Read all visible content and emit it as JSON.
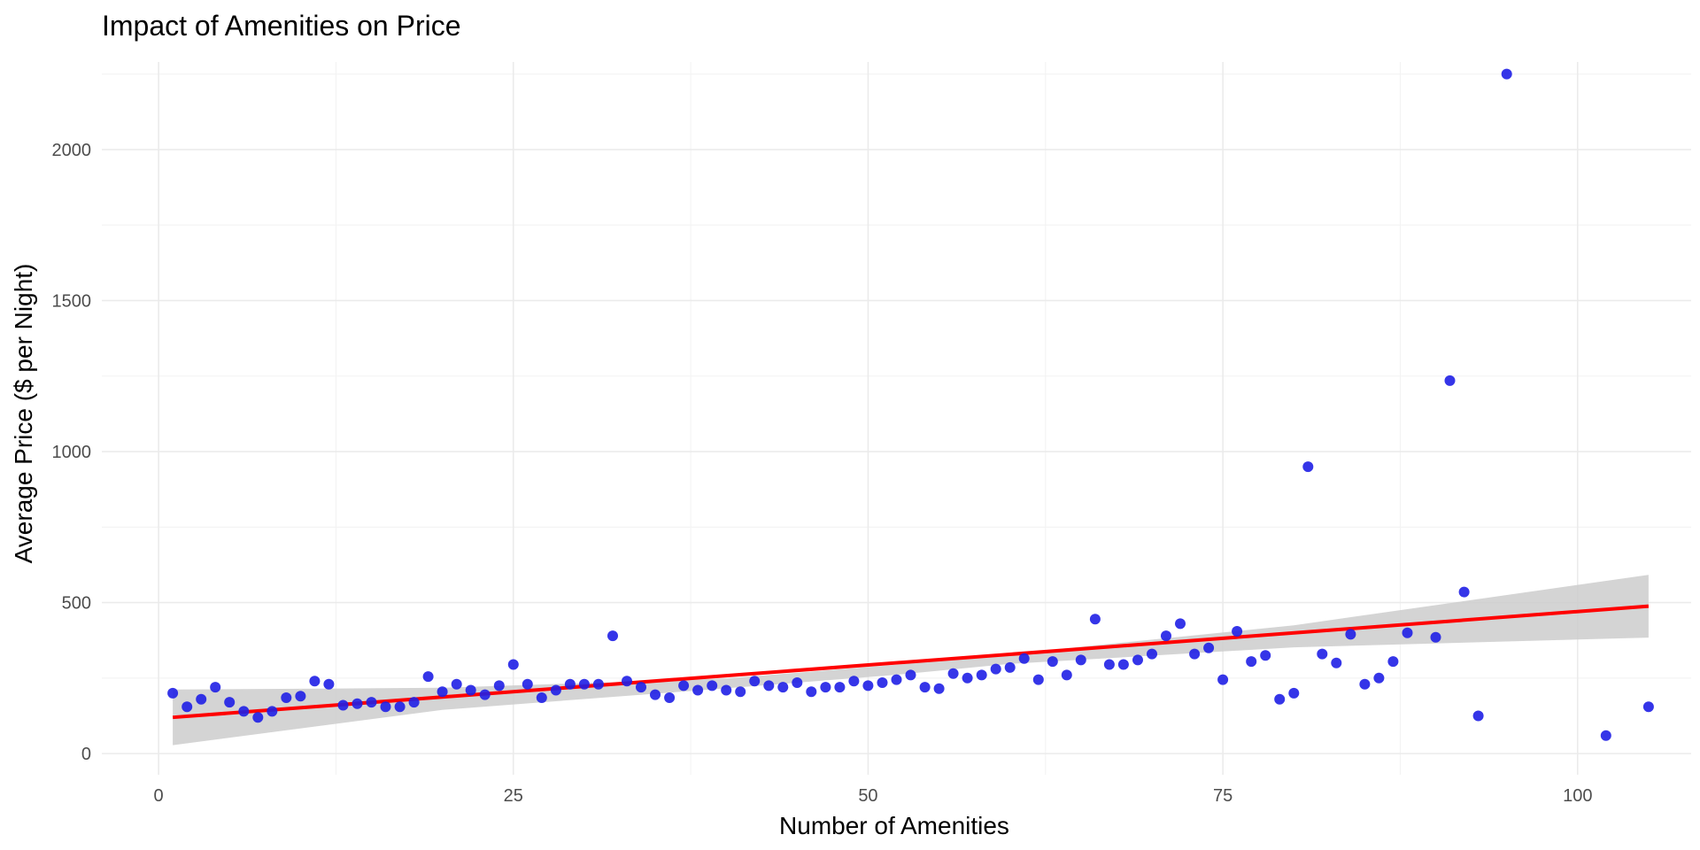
{
  "chart_data": {
    "type": "scatter",
    "title": "Impact of Amenities on Price",
    "xlabel": "Number of Amenities",
    "ylabel": "Average Price ($ per Night)",
    "xlim": [
      -4,
      108
    ],
    "ylim": [
      -70,
      2290
    ],
    "x_ticks": [
      0,
      25,
      50,
      75,
      100
    ],
    "y_ticks": [
      0,
      500,
      1000,
      1500,
      2000
    ],
    "x_minor_ticks": [
      12.5,
      37.5,
      62.5,
      87.5
    ],
    "y_minor_ticks": [
      250,
      750,
      1250,
      1750,
      2250
    ],
    "grid": true,
    "legend": "none",
    "colors": {
      "points": "#1f1fe6",
      "fit_line": "#ff0000",
      "confidence_band": "#cccccc",
      "grid": "#ebebeb",
      "tick_text": "#4d4d4d"
    },
    "points": [
      {
        "x": 1,
        "y": 200
      },
      {
        "x": 2,
        "y": 155
      },
      {
        "x": 3,
        "y": 180
      },
      {
        "x": 4,
        "y": 220
      },
      {
        "x": 5,
        "y": 170
      },
      {
        "x": 6,
        "y": 140
      },
      {
        "x": 7,
        "y": 120
      },
      {
        "x": 8,
        "y": 140
      },
      {
        "x": 9,
        "y": 185
      },
      {
        "x": 10,
        "y": 190
      },
      {
        "x": 11,
        "y": 240
      },
      {
        "x": 12,
        "y": 230
      },
      {
        "x": 13,
        "y": 160
      },
      {
        "x": 14,
        "y": 165
      },
      {
        "x": 15,
        "y": 170
      },
      {
        "x": 16,
        "y": 155
      },
      {
        "x": 17,
        "y": 155
      },
      {
        "x": 18,
        "y": 170
      },
      {
        "x": 19,
        "y": 255
      },
      {
        "x": 20,
        "y": 205
      },
      {
        "x": 21,
        "y": 230
      },
      {
        "x": 22,
        "y": 210
      },
      {
        "x": 23,
        "y": 195
      },
      {
        "x": 24,
        "y": 225
      },
      {
        "x": 25,
        "y": 295
      },
      {
        "x": 26,
        "y": 230
      },
      {
        "x": 27,
        "y": 185
      },
      {
        "x": 28,
        "y": 210
      },
      {
        "x": 29,
        "y": 230
      },
      {
        "x": 30,
        "y": 230
      },
      {
        "x": 31,
        "y": 230
      },
      {
        "x": 32,
        "y": 390
      },
      {
        "x": 33,
        "y": 240
      },
      {
        "x": 34,
        "y": 220
      },
      {
        "x": 35,
        "y": 195
      },
      {
        "x": 36,
        "y": 185
      },
      {
        "x": 37,
        "y": 225
      },
      {
        "x": 38,
        "y": 210
      },
      {
        "x": 39,
        "y": 225
      },
      {
        "x": 40,
        "y": 210
      },
      {
        "x": 41,
        "y": 205
      },
      {
        "x": 42,
        "y": 240
      },
      {
        "x": 43,
        "y": 225
      },
      {
        "x": 44,
        "y": 220
      },
      {
        "x": 45,
        "y": 235
      },
      {
        "x": 46,
        "y": 205
      },
      {
        "x": 47,
        "y": 220
      },
      {
        "x": 48,
        "y": 220
      },
      {
        "x": 49,
        "y": 240
      },
      {
        "x": 50,
        "y": 225
      },
      {
        "x": 51,
        "y": 235
      },
      {
        "x": 52,
        "y": 245
      },
      {
        "x": 53,
        "y": 260
      },
      {
        "x": 54,
        "y": 220
      },
      {
        "x": 55,
        "y": 215
      },
      {
        "x": 56,
        "y": 265
      },
      {
        "x": 57,
        "y": 250
      },
      {
        "x": 58,
        "y": 260
      },
      {
        "x": 59,
        "y": 280
      },
      {
        "x": 60,
        "y": 285
      },
      {
        "x": 61,
        "y": 315
      },
      {
        "x": 62,
        "y": 245
      },
      {
        "x": 63,
        "y": 305
      },
      {
        "x": 64,
        "y": 260
      },
      {
        "x": 65,
        "y": 310
      },
      {
        "x": 66,
        "y": 445
      },
      {
        "x": 67,
        "y": 295
      },
      {
        "x": 68,
        "y": 295
      },
      {
        "x": 69,
        "y": 310
      },
      {
        "x": 70,
        "y": 330
      },
      {
        "x": 71,
        "y": 390
      },
      {
        "x": 72,
        "y": 430
      },
      {
        "x": 73,
        "y": 330
      },
      {
        "x": 74,
        "y": 350
      },
      {
        "x": 75,
        "y": 245
      },
      {
        "x": 76,
        "y": 405
      },
      {
        "x": 77,
        "y": 305
      },
      {
        "x": 78,
        "y": 325
      },
      {
        "x": 79,
        "y": 180
      },
      {
        "x": 80,
        "y": 200
      },
      {
        "x": 81,
        "y": 950
      },
      {
        "x": 82,
        "y": 330
      },
      {
        "x": 83,
        "y": 300
      },
      {
        "x": 84,
        "y": 395
      },
      {
        "x": 85,
        "y": 230
      },
      {
        "x": 86,
        "y": 250
      },
      {
        "x": 87,
        "y": 305
      },
      {
        "x": 88,
        "y": 400
      },
      {
        "x": 90,
        "y": 385
      },
      {
        "x": 91,
        "y": 1235
      },
      {
        "x": 92,
        "y": 535
      },
      {
        "x": 93,
        "y": 125
      },
      {
        "x": 95,
        "y": 2250
      },
      {
        "x": 102,
        "y": 60
      },
      {
        "x": 105,
        "y": 155
      }
    ],
    "fit_line": {
      "method": "linear",
      "x": [
        1,
        105
      ],
      "y": [
        120,
        488
      ]
    },
    "confidence_band": {
      "x": [
        1,
        20,
        40,
        52,
        60,
        80,
        105
      ],
      "lower": [
        28,
        145,
        216,
        261,
        297,
        352,
        384
      ],
      "upper": [
        212,
        218,
        249,
        294,
        330,
        425,
        592
      ]
    }
  }
}
